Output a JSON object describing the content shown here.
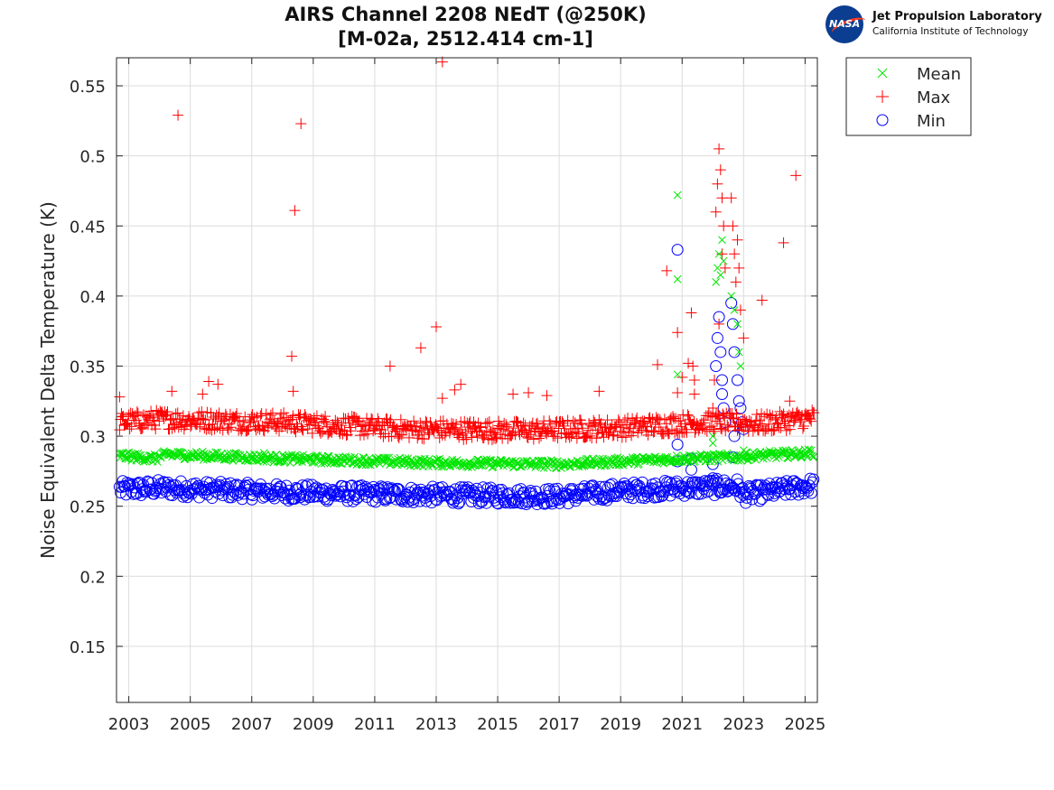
{
  "logo": {
    "badge_text": "NASA",
    "lab_name": "Jet Propulsion Laboratory",
    "lab_sub": "California Institute of Technology"
  },
  "chart_data": {
    "type": "scatter",
    "title": "AIRS Channel 2208 NEdT (@250K)",
    "subtitle": "[M-02a, 2512.414 cm-1]",
    "xlabel": "",
    "ylabel": "Noise Equivalent Delta Temperature (K)",
    "xlim": [
      2002.6,
      2025.4
    ],
    "ylim": [
      0.11,
      0.57
    ],
    "xticks": [
      2003,
      2005,
      2007,
      2009,
      2011,
      2013,
      2015,
      2017,
      2019,
      2021,
      2023,
      2025
    ],
    "yticks": [
      0.15,
      0.2,
      0.25,
      0.3,
      0.35,
      0.4,
      0.45,
      0.5,
      0.55
    ],
    "ytick_labels": [
      "0.15",
      "0.2",
      "0.25",
      "0.3",
      "0.35",
      "0.4",
      "0.45",
      "0.5",
      "0.55"
    ],
    "grid": true,
    "legend_position": "outside-top-right",
    "series": [
      {
        "name": "Mean",
        "marker": "x",
        "color": "#00e600",
        "baseline": [
          [
            2002.7,
            0.286
          ],
          [
            2003.9,
            0.284
          ],
          [
            2004.2,
            0.287
          ],
          [
            2008.0,
            0.284
          ],
          [
            2013.0,
            0.281
          ],
          [
            2017.0,
            0.28
          ],
          [
            2019.0,
            0.282
          ],
          [
            2021.0,
            0.284
          ],
          [
            2022.9,
            0.285
          ],
          [
            2023.3,
            0.286
          ],
          [
            2025.3,
            0.288
          ]
        ],
        "spread": 0.003,
        "points": [
          [
            2007.4,
            0.288
          ],
          [
            2020.85,
            0.472
          ],
          [
            2020.85,
            0.412
          ],
          [
            2020.85,
            0.344
          ],
          [
            2022.1,
            0.41
          ],
          [
            2022.15,
            0.42
          ],
          [
            2022.2,
            0.43
          ],
          [
            2022.25,
            0.415
          ],
          [
            2022.3,
            0.44
          ],
          [
            2022.35,
            0.425
          ],
          [
            2022.0,
            0.3
          ],
          [
            2022.0,
            0.295
          ],
          [
            2022.6,
            0.4
          ],
          [
            2022.7,
            0.39
          ],
          [
            2022.8,
            0.38
          ],
          [
            2022.85,
            0.36
          ],
          [
            2022.9,
            0.35
          ],
          [
            2023.0,
            0.29
          ],
          [
            2023.1,
            0.288
          ]
        ]
      },
      {
        "name": "Max",
        "marker": "+",
        "color": "#ff0000",
        "baseline": [
          [
            2002.7,
            0.31
          ],
          [
            2004.0,
            0.312
          ],
          [
            2008.0,
            0.31
          ],
          [
            2012.0,
            0.305
          ],
          [
            2016.0,
            0.304
          ],
          [
            2019.0,
            0.306
          ],
          [
            2021.0,
            0.309
          ],
          [
            2022.0,
            0.31
          ],
          [
            2023.5,
            0.309
          ],
          [
            2025.3,
            0.313
          ]
        ],
        "spread": 0.007,
        "points": [
          [
            2002.7,
            0.328
          ],
          [
            2004.6,
            0.529
          ],
          [
            2004.4,
            0.332
          ],
          [
            2005.4,
            0.33
          ],
          [
            2005.6,
            0.339
          ],
          [
            2005.9,
            0.337
          ],
          [
            2008.3,
            0.357
          ],
          [
            2008.35,
            0.332
          ],
          [
            2008.4,
            0.461
          ],
          [
            2008.6,
            0.523
          ],
          [
            2011.5,
            0.35
          ],
          [
            2012.5,
            0.363
          ],
          [
            2013.0,
            0.378
          ],
          [
            2013.2,
            0.567
          ],
          [
            2013.2,
            0.327
          ],
          [
            2013.6,
            0.333
          ],
          [
            2013.8,
            0.337
          ],
          [
            2015.5,
            0.33
          ],
          [
            2016.0,
            0.331
          ],
          [
            2016.6,
            0.329
          ],
          [
            2018.3,
            0.332
          ],
          [
            2020.2,
            0.351
          ],
          [
            2020.5,
            0.418
          ],
          [
            2020.85,
            0.374
          ],
          [
            2020.85,
            0.331
          ],
          [
            2021.0,
            0.342
          ],
          [
            2021.2,
            0.352
          ],
          [
            2021.3,
            0.388
          ],
          [
            2021.35,
            0.35
          ],
          [
            2021.4,
            0.34
          ],
          [
            2021.4,
            0.33
          ],
          [
            2022.0,
            0.32
          ],
          [
            2022.05,
            0.34
          ],
          [
            2022.1,
            0.46
          ],
          [
            2022.15,
            0.48
          ],
          [
            2022.2,
            0.505
          ],
          [
            2022.25,
            0.49
          ],
          [
            2022.3,
            0.47
          ],
          [
            2022.35,
            0.45
          ],
          [
            2022.3,
            0.43
          ],
          [
            2022.4,
            0.42
          ],
          [
            2022.2,
            0.38
          ],
          [
            2022.6,
            0.47
          ],
          [
            2022.65,
            0.45
          ],
          [
            2022.7,
            0.43
          ],
          [
            2022.75,
            0.41
          ],
          [
            2022.8,
            0.44
          ],
          [
            2022.85,
            0.42
          ],
          [
            2022.9,
            0.39
          ],
          [
            2023.0,
            0.37
          ],
          [
            2023.6,
            0.397
          ],
          [
            2024.3,
            0.438
          ],
          [
            2024.7,
            0.486
          ],
          [
            2024.5,
            0.325
          ]
        ]
      },
      {
        "name": "Min",
        "marker": "o",
        "color": "#0000ff",
        "baseline": [
          [
            2002.7,
            0.262
          ],
          [
            2004.0,
            0.263
          ],
          [
            2008.0,
            0.26
          ],
          [
            2013.0,
            0.258
          ],
          [
            2017.0,
            0.257
          ],
          [
            2019.0,
            0.261
          ],
          [
            2021.0,
            0.263
          ],
          [
            2022.8,
            0.264
          ],
          [
            2023.0,
            0.258
          ],
          [
            2025.3,
            0.265
          ]
        ],
        "spread": 0.006,
        "points": [
          [
            2020.85,
            0.433
          ],
          [
            2020.85,
            0.294
          ],
          [
            2020.85,
            0.282
          ],
          [
            2021.3,
            0.284
          ],
          [
            2021.3,
            0.276
          ],
          [
            2022.0,
            0.28
          ],
          [
            2022.0,
            0.27
          ],
          [
            2022.1,
            0.35
          ],
          [
            2022.15,
            0.37
          ],
          [
            2022.2,
            0.385
          ],
          [
            2022.25,
            0.36
          ],
          [
            2022.3,
            0.34
          ],
          [
            2022.35,
            0.32
          ],
          [
            2022.3,
            0.33
          ],
          [
            2022.4,
            0.31
          ],
          [
            2022.6,
            0.395
          ],
          [
            2022.65,
            0.38
          ],
          [
            2022.7,
            0.36
          ],
          [
            2022.7,
            0.3
          ],
          [
            2022.65,
            0.285
          ],
          [
            2022.8,
            0.34
          ],
          [
            2022.85,
            0.325
          ],
          [
            2022.9,
            0.32
          ],
          [
            2022.95,
            0.31
          ],
          [
            2023.0,
            0.305
          ]
        ]
      }
    ]
  }
}
